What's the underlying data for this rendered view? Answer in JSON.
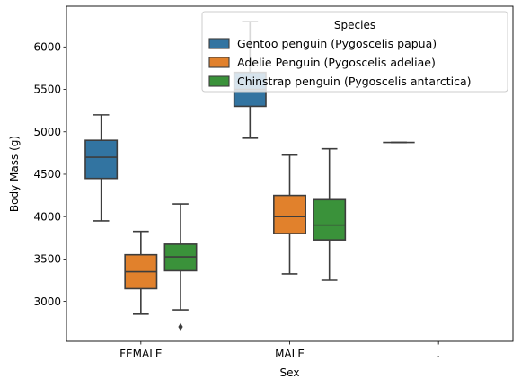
{
  "chart_data": {
    "type": "box",
    "title": "",
    "xlabel": "Sex",
    "ylabel": "Body Mass (g)",
    "categories": [
      "FEMALE",
      "MALE",
      "."
    ],
    "ylim": [
      2530,
      6480
    ],
    "yticks": [
      3000,
      3500,
      4000,
      4500,
      5000,
      5500,
      6000
    ],
    "grid": false,
    "legend": {
      "title": "Species",
      "placement": "top-right"
    },
    "series": [
      {
        "name": "Gentoo penguin (Pygoscelis papua)",
        "color": "#3274a1",
        "boxes": [
          {
            "category": "FEMALE",
            "whislo": 3950,
            "q1": 4450,
            "med": 4700,
            "q3": 4900,
            "whishi": 5200,
            "fliers": []
          },
          {
            "category": "MALE",
            "whislo": 4925,
            "q1": 5300,
            "med": 5500,
            "q3": 5700,
            "whishi": 6300,
            "fliers": []
          },
          {
            "category": ".",
            "whislo": 4875,
            "q1": 4875,
            "med": 4875,
            "q3": 4875,
            "whishi": 4875,
            "fliers": []
          }
        ]
      },
      {
        "name": "Adelie Penguin (Pygoscelis adeliae)",
        "color": "#e1812c",
        "boxes": [
          {
            "category": "FEMALE",
            "whislo": 2850,
            "q1": 3150,
            "med": 3350,
            "q3": 3550,
            "whishi": 3825,
            "fliers": []
          },
          {
            "category": "MALE",
            "whislo": 3325,
            "q1": 3800,
            "med": 4000,
            "q3": 4250,
            "whishi": 4725,
            "fliers": []
          }
        ]
      },
      {
        "name": "Chinstrap penguin (Pygoscelis antarctica)",
        "color": "#3a923a",
        "boxes": [
          {
            "category": "FEMALE",
            "whislo": 2900,
            "q1": 3362,
            "med": 3525,
            "q3": 3675,
            "whishi": 4150,
            "fliers": [
              2700
            ]
          },
          {
            "category": "MALE",
            "whislo": 3250,
            "q1": 3725,
            "med": 3900,
            "q3": 4200,
            "whishi": 4800,
            "fliers": []
          }
        ]
      }
    ]
  }
}
